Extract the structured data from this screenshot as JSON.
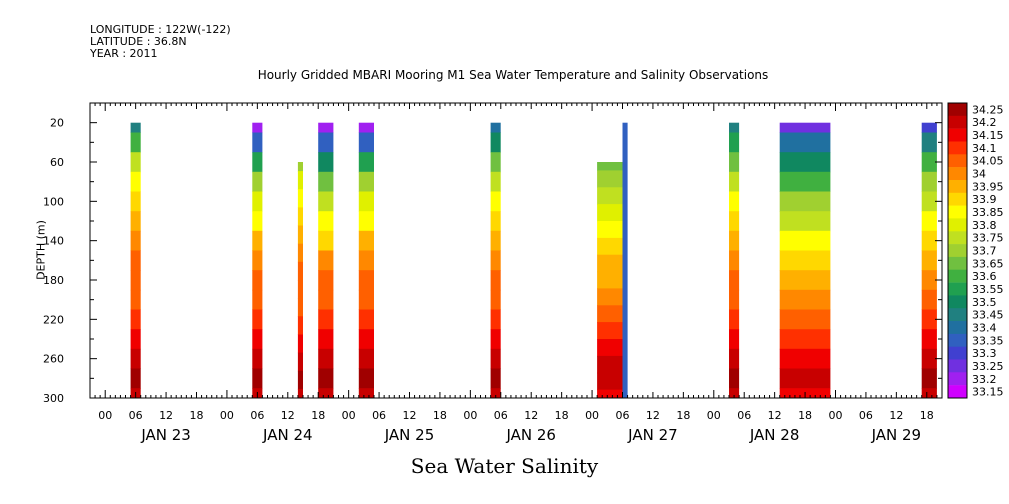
{
  "meta": {
    "longitude": "LONGITUDE : 122W(-122)",
    "latitude": "LATITUDE : 36.8N",
    "year": "YEAR : 2011"
  },
  "chart_data": {
    "type": "heatmap",
    "title": "Hourly Gridded MBARI Mooring M1 Sea Water Temperature and Salinity Observations",
    "xlabel": "Sea Water Salinity",
    "ylabel": "DEPTH (m)",
    "x_axis": {
      "unit": "hours since 2011-01-23 00:00",
      "range": [
        -3,
        165
      ],
      "tick_labels": [
        "00",
        "06",
        "12",
        "18"
      ],
      "day_labels": [
        "JAN 23",
        "JAN 24",
        "JAN 25",
        "JAN 26",
        "JAN 27",
        "JAN 28",
        "JAN 29"
      ]
    },
    "y_axis": {
      "range": [
        300,
        0
      ],
      "ticks": [
        20,
        60,
        100,
        140,
        180,
        220,
        260,
        300
      ]
    },
    "colorbar": {
      "levels": [
        34.25,
        34.2,
        34.15,
        34.1,
        34.05,
        34,
        33.95,
        33.9,
        33.85,
        33.8,
        33.75,
        33.7,
        33.65,
        33.6,
        33.55,
        33.5,
        33.45,
        33.4,
        33.35,
        33.3,
        33.25,
        33.2,
        33.15
      ],
      "colors": [
        "#a00000",
        "#c80000",
        "#f00000",
        "#ff3000",
        "#ff6000",
        "#ff8800",
        "#ffb000",
        "#ffd800",
        "#ffff00",
        "#e0f000",
        "#c0e020",
        "#a0d030",
        "#70c040",
        "#40b040",
        "#20a050",
        "#108860",
        "#208080",
        "#2070a0",
        "#3060c0",
        "#4040d0",
        "#7030e0",
        "#a020f0",
        "#d000ff"
      ]
    },
    "observation_segments": [
      {
        "start_hour": 5,
        "end_hour": 7,
        "top_depth": 20,
        "column_salinity": [
          33.45,
          33.6,
          33.75,
          33.85,
          33.9,
          33.95,
          34.0,
          34.05,
          34.05,
          34.05,
          34.1,
          34.15,
          34.2,
          34.25,
          34.2
        ]
      },
      {
        "start_hour": 29,
        "end_hour": 31,
        "top_depth": 20,
        "column_salinity": [
          33.2,
          33.35,
          33.55,
          33.7,
          33.8,
          33.85,
          33.95,
          34.0,
          34.05,
          34.05,
          34.1,
          34.15,
          34.2,
          34.25,
          34.2
        ]
      },
      {
        "start_hour": 38,
        "end_hour": 39,
        "top_depth": 60,
        "column_salinity": [
          33.7,
          33.8,
          33.85,
          33.9,
          33.95,
          34.0,
          34.05,
          34.05,
          34.05,
          34.1,
          34.15,
          34.2,
          34.25,
          34.2
        ]
      },
      {
        "start_hour": 42,
        "end_hour": 45,
        "top_depth": 20,
        "column_salinity": [
          33.2,
          33.35,
          33.5,
          33.65,
          33.75,
          33.85,
          33.9,
          34.0,
          34.05,
          34.05,
          34.1,
          34.15,
          34.2,
          34.25,
          34.2
        ]
      },
      {
        "start_hour": 50,
        "end_hour": 53,
        "top_depth": 20,
        "column_salinity": [
          33.2,
          33.35,
          33.55,
          33.7,
          33.8,
          33.85,
          33.95,
          34.0,
          34.05,
          34.05,
          34.1,
          34.15,
          34.2,
          34.25,
          34.2
        ]
      },
      {
        "start_hour": 76,
        "end_hour": 78,
        "top_depth": 20,
        "column_salinity": [
          33.4,
          33.5,
          33.65,
          33.75,
          33.85,
          33.9,
          33.95,
          34.0,
          34.05,
          34.05,
          34.1,
          34.15,
          34.2,
          34.25,
          34.2
        ]
      },
      {
        "start_hour": 97,
        "end_hour": 102,
        "top_depth": 60,
        "column_salinity": [
          33.65,
          33.7,
          33.75,
          33.8,
          33.85,
          33.9,
          33.95,
          33.95,
          34.0,
          34.05,
          34.1,
          34.15,
          34.2,
          34.2,
          34.15
        ]
      },
      {
        "start_hour": 102,
        "end_hour": 103,
        "top_depth": 20,
        "column_salinity": [
          33.35
        ]
      },
      {
        "start_hour": 123,
        "end_hour": 125,
        "top_depth": 20,
        "column_salinity": [
          33.45,
          33.55,
          33.65,
          33.75,
          33.85,
          33.9,
          33.95,
          34.0,
          34.05,
          34.05,
          34.1,
          34.15,
          34.2,
          34.25,
          34.2
        ]
      },
      {
        "start_hour": 133,
        "end_hour": 143,
        "top_depth": 20,
        "column_salinity": [
          33.25,
          33.4,
          33.5,
          33.6,
          33.7,
          33.75,
          33.85,
          33.9,
          33.95,
          34.0,
          34.05,
          34.1,
          34.15,
          34.2,
          34.15
        ]
      },
      {
        "start_hour": 161,
        "end_hour": 164,
        "top_depth": 20,
        "column_salinity": [
          33.3,
          33.45,
          33.6,
          33.7,
          33.75,
          33.85,
          33.9,
          33.95,
          34.0,
          34.05,
          34.1,
          34.15,
          34.2,
          34.25,
          34.2
        ]
      }
    ]
  }
}
